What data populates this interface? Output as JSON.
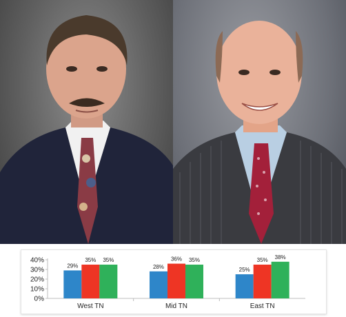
{
  "photos": [
    {
      "subject": "man with mustache, dark navy suit, white shirt, floral tie"
    },
    {
      "subject": "older bald man, pinstripe gray suit, light blue shirt, red patterned tie"
    }
  ],
  "chart_data": {
    "type": "bar",
    "title": "",
    "xlabel": "",
    "ylabel": "",
    "categories": [
      "West TN",
      "Mid TN",
      "East TN"
    ],
    "series": [
      {
        "values": [
          29,
          28,
          25
        ],
        "labels": [
          "29%",
          "28%",
          "25%"
        ]
      },
      {
        "values": [
          35,
          36,
          35
        ],
        "labels": [
          "35%",
          "36%",
          "35%"
        ]
      },
      {
        "values": [
          35,
          35,
          38
        ],
        "labels": [
          "35%",
          "35%",
          "38%"
        ]
      }
    ],
    "ylim": [
      0,
      40
    ],
    "yticks": [
      0,
      10,
      20,
      30,
      40
    ],
    "ytick_labels": [
      "0%",
      "10%",
      "20%",
      "30%",
      "40%"
    ],
    "grid": false,
    "legend": "none",
    "colors": [
      "#2e86c9",
      "#ee3524",
      "#2fb15a"
    ]
  }
}
